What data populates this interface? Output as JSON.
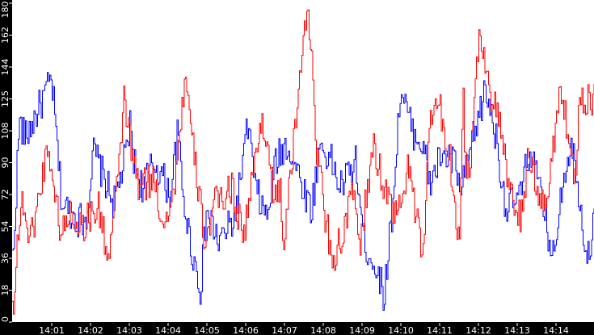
{
  "chart_data": {
    "type": "line",
    "title": "",
    "xlabel": "",
    "ylabel": "",
    "ylim": [
      0,
      180
    ],
    "grid": false,
    "legend": "none",
    "y_ticks": [
      "0",
      "18",
      "36",
      "54",
      "72",
      "90",
      "108",
      "125",
      "144",
      "162",
      "180"
    ],
    "x_ticks": [
      "14:01",
      "14:02",
      "14:03",
      "14:04",
      "14:05",
      "14:06",
      "14:07",
      "14:08",
      "14:09",
      "14:10",
      "14:11",
      "14:12",
      "14:13",
      "14:14"
    ],
    "colors": {
      "background": "#000000",
      "plot_background": "#ffffff",
      "series_blue": "#0000ff",
      "series_red": "#ff0000",
      "axis_text": "#ffffff"
    },
    "series": [
      {
        "name": "blue",
        "color": "#0000ff",
        "anchors_x_minutes": [
          14.0,
          14.15,
          14.32,
          14.99,
          15.25,
          15.66,
          15.87,
          16.08,
          16.29,
          16.6,
          16.93,
          17.01,
          17.12,
          17.32,
          17.63,
          17.83,
          18.04,
          18.25,
          18.35,
          18.56,
          18.83,
          18.98,
          19.29,
          19.71,
          20.06,
          20.23,
          20.54,
          20.75,
          21.06,
          21.69,
          21.9,
          22.21,
          22.42,
          22.83,
          23.04,
          23.35,
          23.56,
          23.77,
          23.98,
          24.29,
          24.6,
          24.71,
          25.02,
          25.38,
          25.54,
          25.75,
          26.17,
          26.38,
          26.71,
          27.08,
          27.33,
          27.5,
          27.92,
          28.13,
          28.38,
          28.54,
          28.79,
          29.0
        ],
        "values": [
          36,
          113,
          104,
          137,
          67,
          58,
          58,
          97,
          84,
          67,
          97,
          111,
          90,
          76,
          90,
          83,
          72,
          108,
          76,
          45,
          18,
          63,
          45,
          58,
          113,
          76,
          58,
          90,
          101,
          63,
          101,
          90,
          76,
          90,
          45,
          31,
          15,
          63,
          131,
          108,
          99,
          76,
          94,
          90,
          72,
          94,
          131,
          113,
          63,
          72,
          99,
          81,
          36,
          76,
          103,
          81,
          36,
          58
        ]
      },
      {
        "name": "red",
        "color": "#ff0000",
        "anchors_x_minutes": [
          14.0,
          14.1,
          14.25,
          14.42,
          14.63,
          14.9,
          15.1,
          15.25,
          15.46,
          15.77,
          16.19,
          16.46,
          16.71,
          16.86,
          17.03,
          17.23,
          17.65,
          17.81,
          18.1,
          18.44,
          18.58,
          18.79,
          18.94,
          19.21,
          19.63,
          19.94,
          20.42,
          20.77,
          20.88,
          20.98,
          21.29,
          21.5,
          21.6,
          21.81,
          22.02,
          22.23,
          22.44,
          22.75,
          22.96,
          23.27,
          23.58,
          23.88,
          24.21,
          24.56,
          24.71,
          24.98,
          25.27,
          25.5,
          25.6,
          25.65,
          25.75,
          26.02,
          26.33,
          26.54,
          26.75,
          27.06,
          27.27,
          27.73,
          28.1,
          28.31,
          28.48,
          28.6
        ],
        "values": [
          9,
          45,
          70,
          45,
          67,
          101,
          67,
          49,
          63,
          54,
          65,
          36,
          81,
          129,
          99,
          76,
          81,
          58,
          67,
          140,
          106,
          72,
          45,
          67,
          76,
          49,
          117,
          67,
          74,
          45,
          113,
          170,
          180,
          101,
          63,
          36,
          45,
          72,
          45,
          99,
          76,
          58,
          90,
          31,
          113,
          122,
          90,
          45,
          129,
          94,
          81,
          167,
          126,
          113,
          76,
          58,
          90,
          63,
          135,
          104,
          81,
          126
        ]
      }
    ]
  }
}
